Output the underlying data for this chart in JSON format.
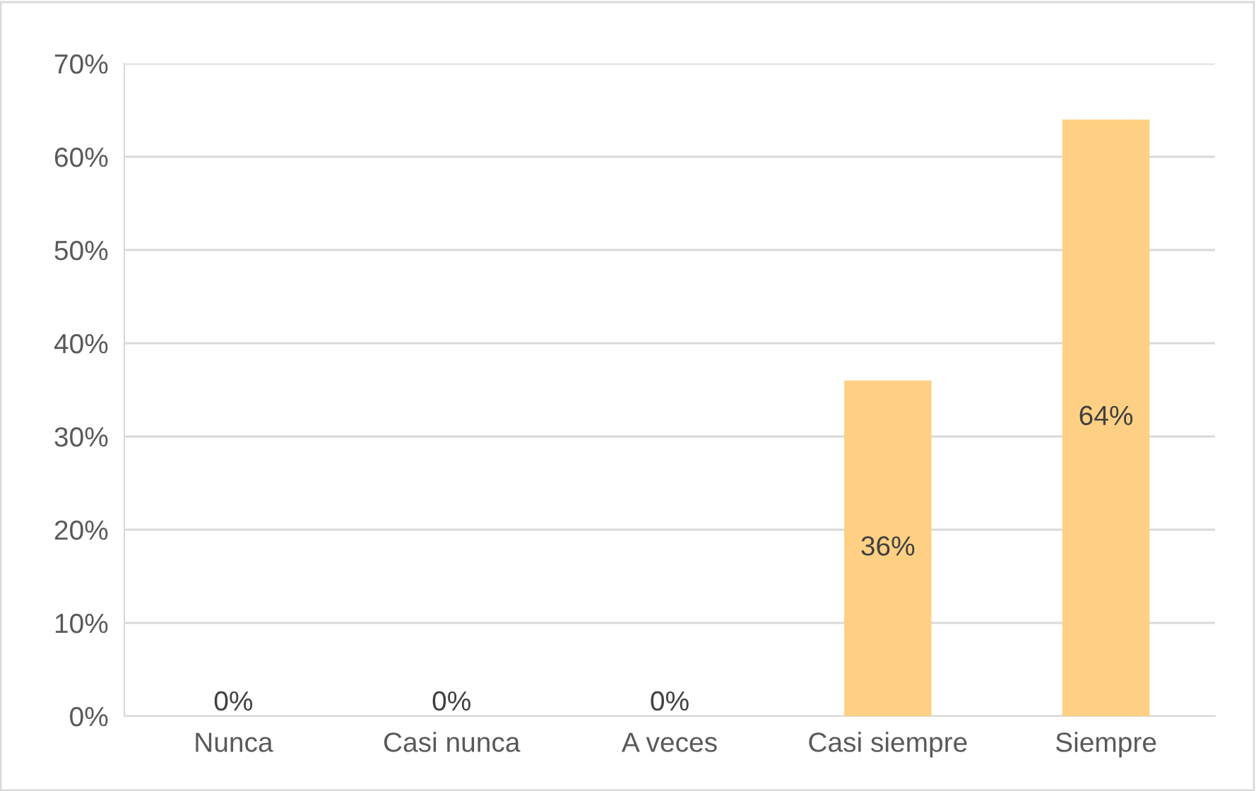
{
  "chart_data": {
    "type": "bar",
    "categories": [
      "Nunca",
      "Casi nunca",
      "A veces",
      "Casi siempre",
      "Siempre"
    ],
    "values": [
      0,
      0,
      0,
      36,
      64
    ],
    "value_labels": [
      "0%",
      "0%",
      "0%",
      "36%",
      "64%"
    ],
    "color": "#ffd084",
    "ylim": [
      0,
      70
    ],
    "yticks": [
      {
        "value": 0,
        "label": "0%"
      },
      {
        "value": 10,
        "label": "10%"
      },
      {
        "value": 20,
        "label": "20%"
      },
      {
        "value": 30,
        "label": "30%"
      },
      {
        "value": 40,
        "label": "40%"
      },
      {
        "value": 50,
        "label": "50%"
      },
      {
        "value": 60,
        "label": "60%"
      },
      {
        "value": 70,
        "label": "70%"
      }
    ],
    "grid": "y",
    "legend": false
  }
}
